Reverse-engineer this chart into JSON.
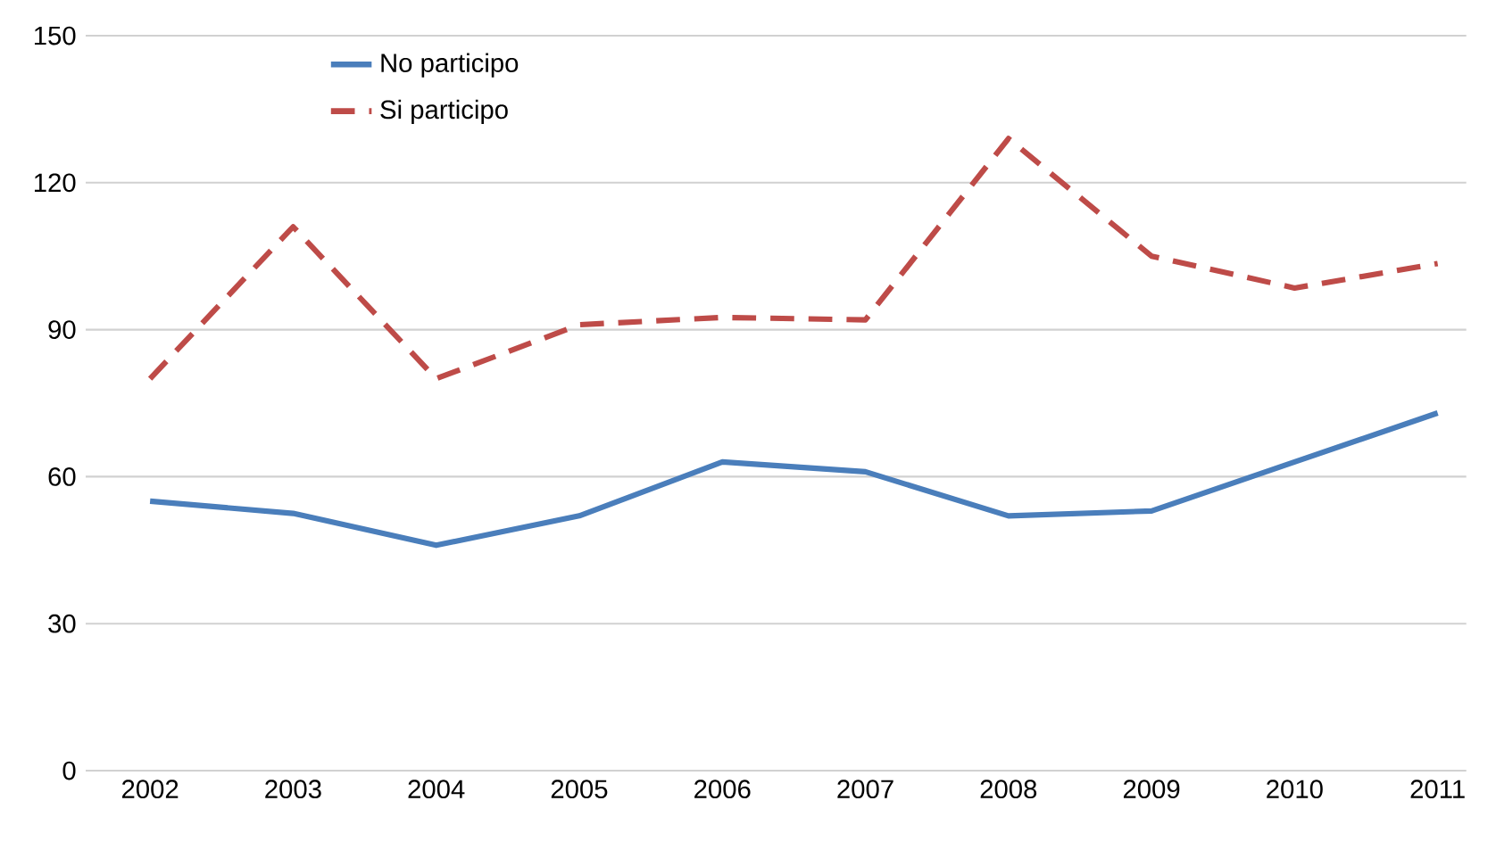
{
  "chart_data": {
    "type": "line",
    "categories": [
      "2002",
      "2003",
      "2004",
      "2005",
      "2006",
      "2007",
      "2008",
      "2009",
      "2010",
      "2011"
    ],
    "series": [
      {
        "name": "No participo",
        "color": "#4a7ebb",
        "line_style": "solid",
        "values": [
          55,
          52.5,
          46,
          52,
          63,
          61,
          52,
          53,
          63,
          73
        ]
      },
      {
        "name": "Si participo",
        "color": "#be4b48",
        "line_style": "dashed",
        "values": [
          80,
          111,
          80,
          91,
          92.5,
          92,
          129,
          105,
          98.5,
          103.5
        ]
      }
    ],
    "ylim": [
      0,
      150
    ],
    "yticks": [
      0,
      30,
      60,
      90,
      120,
      150
    ],
    "grid": "y",
    "legend": "top left",
    "marker": "none"
  }
}
